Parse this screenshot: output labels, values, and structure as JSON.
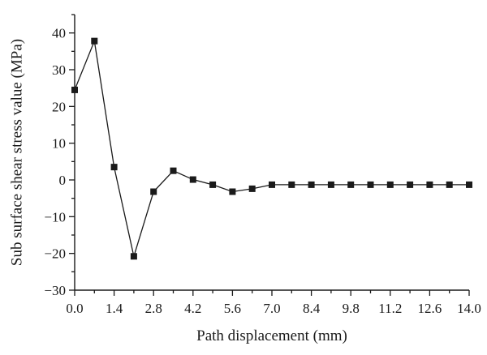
{
  "chart_data": {
    "type": "line",
    "title": "",
    "xlabel": "Path displacement (mm)",
    "ylabel": "Sub surface shear stress value (MPa)",
    "xlim": [
      0,
      14
    ],
    "ylim": [
      -30,
      45
    ],
    "grid": false,
    "marker": "square",
    "line_color": "#1a1a1a",
    "x_ticks": [
      {
        "value": 0,
        "label": "0.0"
      },
      {
        "value": 1.4,
        "label": "1.4"
      },
      {
        "value": 2.8,
        "label": "2.8"
      },
      {
        "value": 4.2,
        "label": "4.2"
      },
      {
        "value": 5.6,
        "label": "5.6"
      },
      {
        "value": 7.0,
        "label": "7.0"
      },
      {
        "value": 8.4,
        "label": "8.4"
      },
      {
        "value": 9.8,
        "label": "9.8"
      },
      {
        "value": 11.2,
        "label": "11.2"
      },
      {
        "value": 12.6,
        "label": "12.6"
      },
      {
        "value": 14.0,
        "label": "14.0"
      }
    ],
    "y_ticks": [
      {
        "value": -30,
        "label": "−30"
      },
      {
        "value": -20,
        "label": "−20"
      },
      {
        "value": -10,
        "label": "−10"
      },
      {
        "value": 0,
        "label": "0"
      },
      {
        "value": 10,
        "label": "10"
      },
      {
        "value": 20,
        "label": "20"
      },
      {
        "value": 30,
        "label": "30"
      },
      {
        "value": 40,
        "label": "40"
      }
    ],
    "series": [
      {
        "x": [
          0,
          0.7,
          1.4,
          2.1,
          2.8,
          3.5,
          4.2,
          4.9,
          5.6,
          6.3,
          7.0,
          7.7,
          8.4,
          9.1,
          9.8,
          10.5,
          11.2,
          11.9,
          12.6,
          13.3,
          14.0
        ],
        "y": [
          24.5,
          37.8,
          3.5,
          -20.8,
          -3.2,
          2.5,
          0.1,
          -1.3,
          -3.2,
          -2.4,
          -1.3,
          -1.3,
          -1.3,
          -1.3,
          -1.3,
          -1.3,
          -1.3,
          -1.3,
          -1.3,
          -1.3,
          -1.3
        ]
      }
    ]
  }
}
